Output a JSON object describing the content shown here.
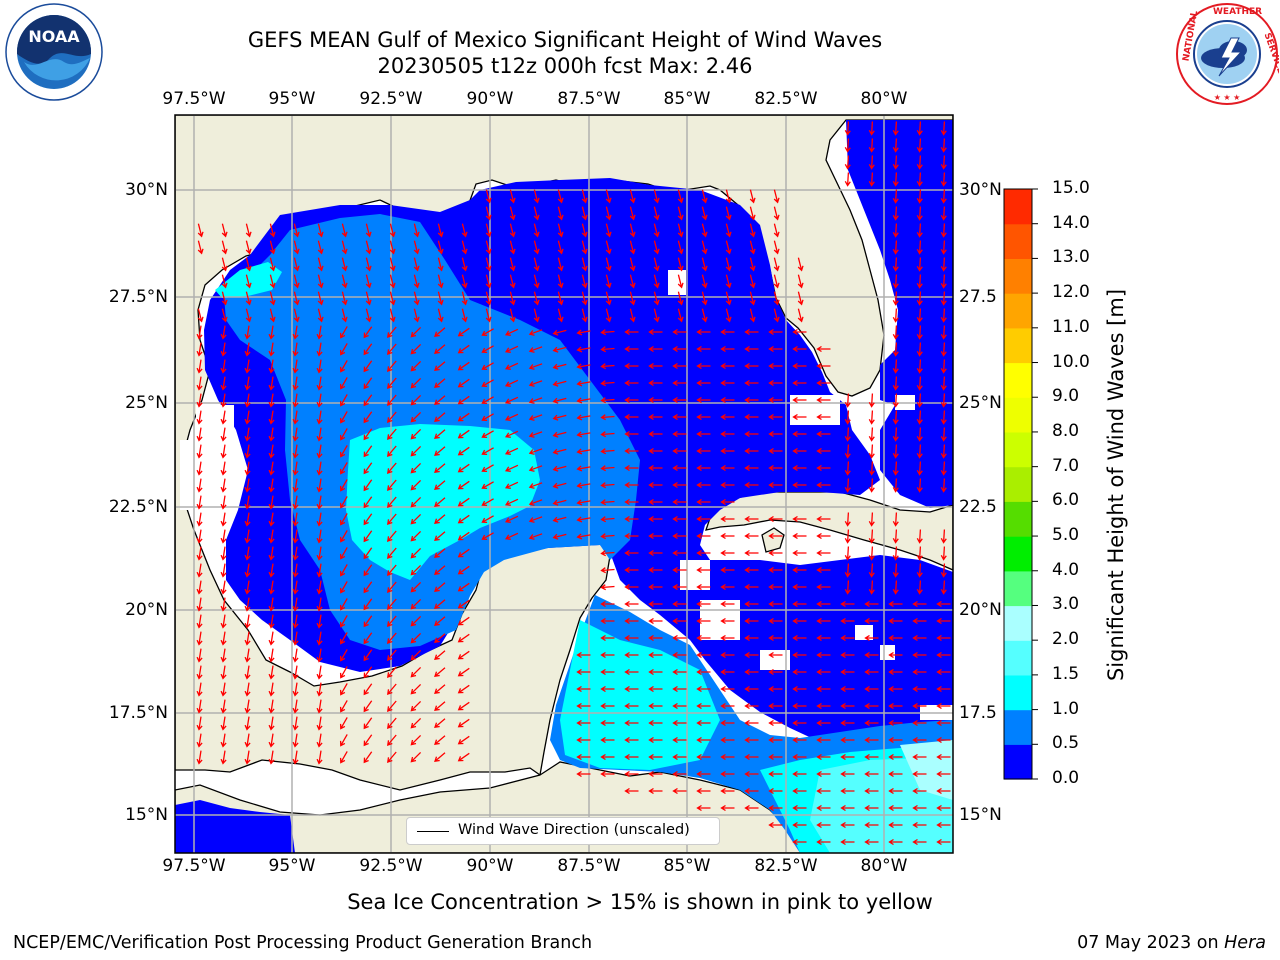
{
  "header": {
    "title_line1": "GEFS MEAN Gulf of Mexico Significant Height of Wind Waves",
    "title_line2": "20230505 t12z 000h fcst   Max: 2.46"
  },
  "logos": {
    "noaa": {
      "icon": "noaa-logo",
      "text": "NOAA"
    },
    "nws": {
      "icon": "national-weather-service-logo",
      "ring_text": "NATIONAL WEATHER SERVICE"
    }
  },
  "map": {
    "lon_ticks": [
      "97.5°W",
      "95°W",
      "92.5°W",
      "90°W",
      "87.5°W",
      "85°W",
      "82.5°W",
      "80°W"
    ],
    "lat_ticks_left": [
      "30°N",
      "27.5°N",
      "25°N",
      "22.5°N",
      "20°N",
      "17.5°N",
      "15°N"
    ],
    "lat_ticks_right": [
      "30°N",
      "27.5",
      "25°N",
      "22.5",
      "20°N",
      "17.5",
      "15°N"
    ],
    "extent": {
      "lon": [
        -98,
        -78.2
      ],
      "lat": [
        14,
        31.8
      ]
    },
    "land_color": "#efeedb",
    "gridlines": true
  },
  "legend": {
    "label": "Wind Wave Direction (unscaled)"
  },
  "colorbar": {
    "ticks": [
      "15.0",
      "14.0",
      "13.0",
      "12.0",
      "11.0",
      "10.0",
      "9.0",
      "8.0",
      "7.0",
      "6.0",
      "5.0",
      "4.0",
      "3.0",
      "2.0",
      "1.5",
      "1.0",
      "0.5",
      "0.0"
    ],
    "label": "Significant Height of Wind Waves [m]",
    "colors": [
      "#0000ff",
      "#0080ff",
      "#00ffff",
      "#55ffff",
      "#aaffff",
      "#55ff7f",
      "#00ee00",
      "#55dd00",
      "#aaee00",
      "#ccff00",
      "#eeff00",
      "#ffff00",
      "#ffcc00",
      "#ffa500",
      "#ff8000",
      "#ff5500",
      "#ff2a00",
      "#ff0000"
    ]
  },
  "notes": {
    "sea_ice": "Sea Ice Concentration > 15% is shown in pink to yellow"
  },
  "footer": {
    "left": "NCEP/EMC/Verification Post Processing Product Generation Branch",
    "date": "07 May 2023 on ",
    "machine": "Hera"
  }
}
